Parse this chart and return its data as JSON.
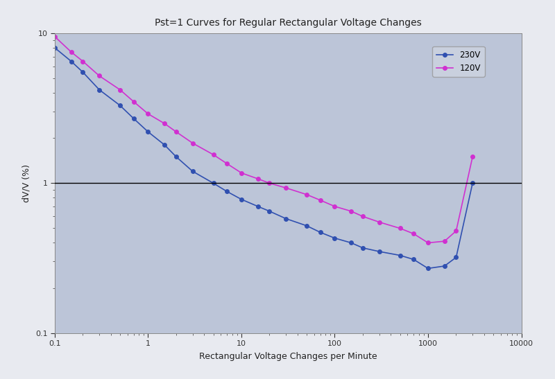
{
  "title": "Pst=1 Curves for Regular Rectangular Voltage Changes",
  "xlabel": "Rectangular Voltage Changes per Minute",
  "ylabel": "dV/V (%)",
  "plot_bg_color": "#bcc5d8",
  "fig_bg_color": "#e8eaf0",
  "xlim": [
    0.1,
    10000
  ],
  "ylim": [
    0.1,
    10
  ],
  "line_230v_color": "#3050b0",
  "line_120v_color": "#d030d0",
  "x_230v": [
    0.1,
    0.15,
    0.2,
    0.3,
    0.5,
    0.7,
    1.0,
    1.5,
    2.0,
    3.0,
    5.0,
    7.0,
    10,
    15,
    20,
    30,
    50,
    70,
    100,
    150,
    200,
    300,
    500,
    700,
    1000,
    1500,
    2000,
    3000
  ],
  "y_230v": [
    8.0,
    6.5,
    5.5,
    4.2,
    3.3,
    2.7,
    2.2,
    1.8,
    1.5,
    1.2,
    1.0,
    0.88,
    0.78,
    0.7,
    0.65,
    0.58,
    0.52,
    0.47,
    0.43,
    0.4,
    0.37,
    0.35,
    0.33,
    0.31,
    0.27,
    0.28,
    0.32,
    1.0
  ],
  "x_120v": [
    0.1,
    0.15,
    0.2,
    0.3,
    0.5,
    0.7,
    1.0,
    1.5,
    2.0,
    3.0,
    5.0,
    7.0,
    10,
    15,
    20,
    30,
    50,
    70,
    100,
    150,
    200,
    300,
    500,
    700,
    1000,
    1500,
    2000,
    3000
  ],
  "y_120v": [
    9.5,
    7.5,
    6.5,
    5.2,
    4.2,
    3.5,
    2.9,
    2.5,
    2.2,
    1.85,
    1.55,
    1.35,
    1.17,
    1.07,
    1.0,
    0.93,
    0.84,
    0.77,
    0.7,
    0.65,
    0.6,
    0.55,
    0.5,
    0.46,
    0.4,
    0.41,
    0.48,
    1.5
  ],
  "hline_y": 1.0,
  "hline_color": "#000000",
  "legend_230v": "230V",
  "legend_120v": "120V",
  "marker": "o",
  "marker_size": 4,
  "title_fontsize": 10,
  "axis_label_fontsize": 9,
  "tick_fontsize": 8
}
